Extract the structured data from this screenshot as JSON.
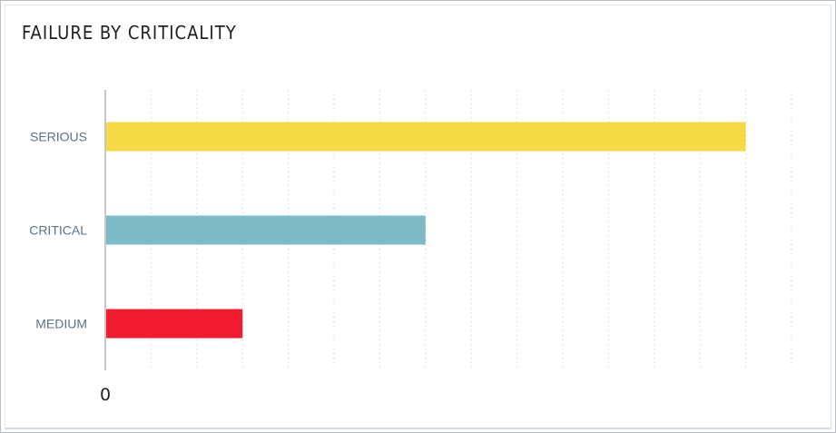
{
  "chart_data": {
    "type": "bar",
    "orientation": "horizontal",
    "title": "FAILURE BY CRITICALITY",
    "categories": [
      "SERIOUS",
      "CRITICAL",
      "MEDIUM"
    ],
    "values": [
      14,
      7,
      3
    ],
    "colors": [
      "#f5da45",
      "#7dbcc7",
      "#f21b32"
    ],
    "xlim": [
      0,
      15
    ],
    "x_tick_labels": [
      "0"
    ],
    "grid": "vertical-dotted",
    "legend": "none"
  }
}
